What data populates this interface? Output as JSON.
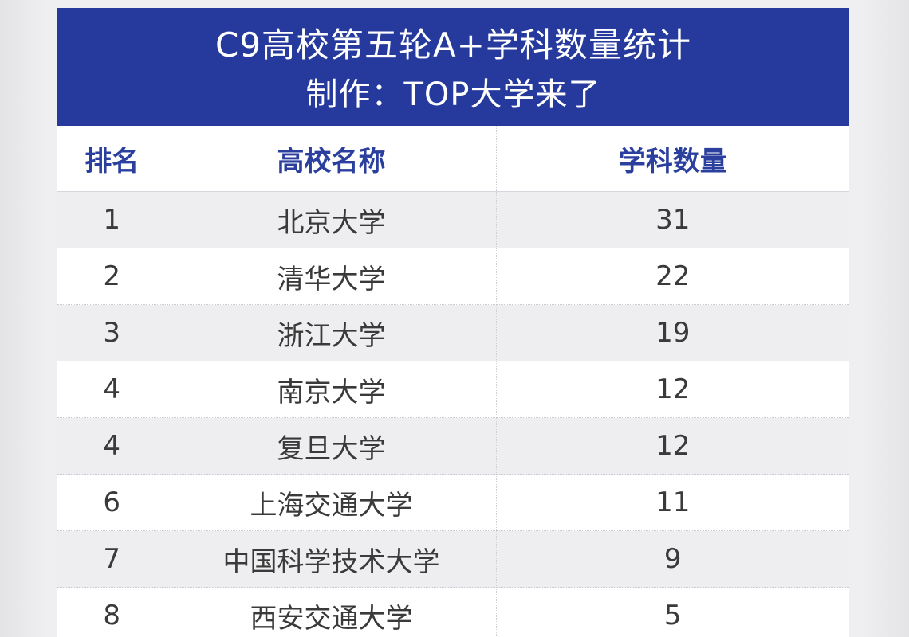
{
  "header": {
    "title": "C9高校第五轮A+学科数量统计",
    "subtitle": "制作：TOP大学来了"
  },
  "table": {
    "columns": [
      "排名",
      "高校名称",
      "学科数量"
    ],
    "rows": [
      {
        "rank": "1",
        "name": "北京大学",
        "count": "31"
      },
      {
        "rank": "2",
        "name": "清华大学",
        "count": "22"
      },
      {
        "rank": "3",
        "name": "浙江大学",
        "count": "19"
      },
      {
        "rank": "4",
        "name": "南京大学",
        "count": "12"
      },
      {
        "rank": "4",
        "name": "复旦大学",
        "count": "12"
      },
      {
        "rank": "6",
        "name": "上海交通大学",
        "count": "11"
      },
      {
        "rank": "7",
        "name": "中国科学技术大学",
        "count": "9"
      },
      {
        "rank": "8",
        "name": "西安交通大学",
        "count": "5"
      }
    ]
  },
  "colors": {
    "banner": "#253a9c",
    "header_text": "#2b3f9e",
    "row_shade": "#eeeef0"
  }
}
